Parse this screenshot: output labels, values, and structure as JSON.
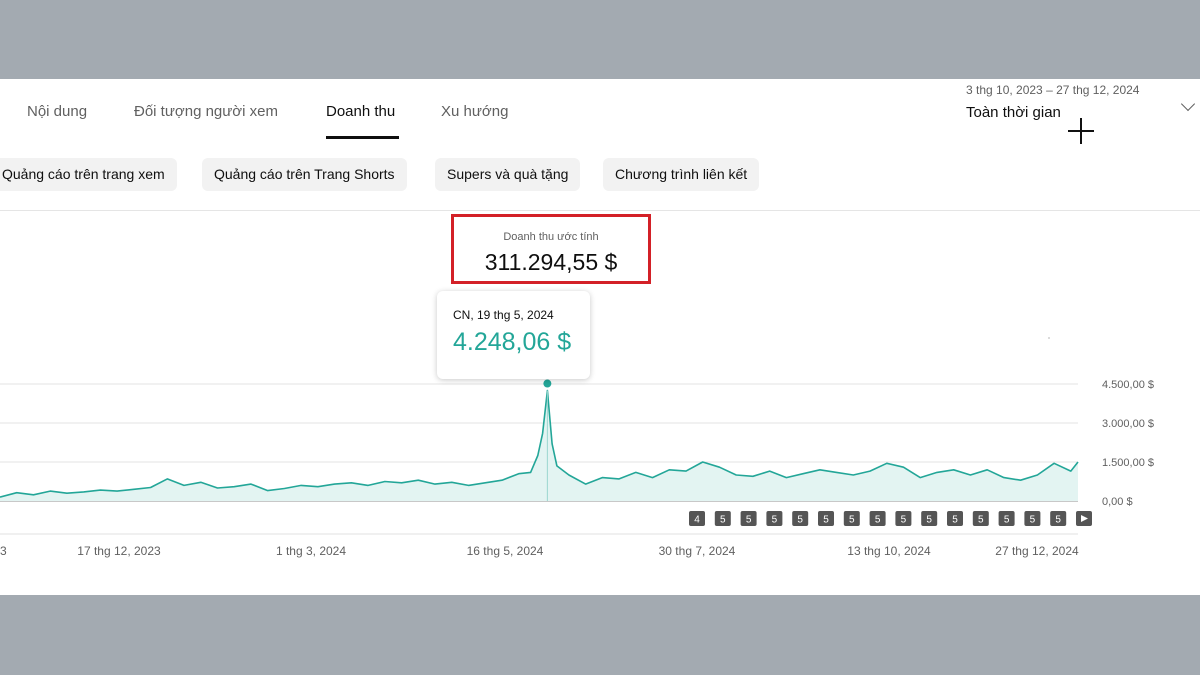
{
  "tabs": [
    {
      "label": "Nội dung"
    },
    {
      "label": "Đối tượng người xem"
    },
    {
      "label": "Doanh thu",
      "active": true
    },
    {
      "label": "Xu hướng"
    }
  ],
  "date_filter": {
    "range": "3 thg 10, 2023 – 27 thg 12, 2024",
    "period": "Toàn thời gian"
  },
  "chips": [
    {
      "label": "Quảng cáo trên trang xem"
    },
    {
      "label": "Quảng cáo trên Trang Shorts"
    },
    {
      "label": "Supers và quà tặng"
    },
    {
      "label": "Chương trình liên kết"
    }
  ],
  "metric": {
    "label": "Doanh thu ước tính",
    "value": "311.294,55 $"
  },
  "tooltip": {
    "date": "CN, 19 thg 5, 2024",
    "value": "4.248,06 $"
  },
  "colors": {
    "line": "#23a698",
    "area": "#e3f4f2",
    "highlight_border": "#d32027"
  },
  "chart_data": {
    "type": "area",
    "title": "",
    "ylabel": "",
    "xlabel": "",
    "x_range": [
      "2023-10-03",
      "2024-12-27"
    ],
    "ylim": [
      0,
      4500
    ],
    "y_ticks": [
      "0,00 $",
      "1.500,00 $",
      "3.000,00 $",
      "4.500,00 $"
    ],
    "x_ticks": [
      "3",
      "17 thg 12, 2023",
      "1 thg 3, 2024",
      "16 thg 5, 2024",
      "30 thg 7, 2024",
      "13 thg 10, 2024",
      "27 thg 12, 2024"
    ],
    "grid": true,
    "series": [
      {
        "x": [
          "2023-10-03",
          "2023-10-10",
          "2023-10-17",
          "2023-10-24",
          "2023-10-31",
          "2023-11-07",
          "2023-11-14",
          "2023-11-21",
          "2023-11-28",
          "2023-12-05",
          "2023-12-12",
          "2023-12-19",
          "2023-12-26",
          "2024-01-02",
          "2024-01-09",
          "2024-01-16",
          "2024-01-23",
          "2024-01-30",
          "2024-02-06",
          "2024-02-13",
          "2024-02-20",
          "2024-02-27",
          "2024-03-05",
          "2024-03-12",
          "2024-03-19",
          "2024-03-26",
          "2024-04-02",
          "2024-04-09",
          "2024-04-16",
          "2024-04-23",
          "2024-04-30",
          "2024-05-07",
          "2024-05-12",
          "2024-05-15",
          "2024-05-17",
          "2024-05-19",
          "2024-05-21",
          "2024-05-23",
          "2024-05-28",
          "2024-06-04",
          "2024-06-11",
          "2024-06-18",
          "2024-06-25",
          "2024-07-02",
          "2024-07-09",
          "2024-07-16",
          "2024-07-23",
          "2024-07-30",
          "2024-08-06",
          "2024-08-13",
          "2024-08-20",
          "2024-08-27",
          "2024-09-03",
          "2024-09-10",
          "2024-09-17",
          "2024-09-24",
          "2024-10-01",
          "2024-10-08",
          "2024-10-15",
          "2024-10-22",
          "2024-10-29",
          "2024-11-05",
          "2024-11-12",
          "2024-11-19",
          "2024-11-26",
          "2024-12-03",
          "2024-12-10",
          "2024-12-17",
          "2024-12-24",
          "2024-12-27"
        ],
        "values": [
          150,
          320,
          240,
          380,
          300,
          350,
          420,
          380,
          450,
          520,
          850,
          600,
          720,
          500,
          550,
          650,
          400,
          480,
          600,
          550,
          650,
          700,
          600,
          750,
          700,
          800,
          650,
          720,
          600,
          700,
          800,
          1050,
          1100,
          1750,
          2600,
          4248,
          2200,
          1350,
          1000,
          650,
          900,
          850,
          1100,
          900,
          1200,
          1150,
          1500,
          1300,
          1000,
          950,
          1150,
          900,
          1050,
          1200,
          1100,
          1000,
          1150,
          1450,
          1300,
          900,
          1100,
          1200,
          1000,
          1200,
          900,
          800,
          1000,
          1450,
          1150,
          1500
        ]
      }
    ]
  },
  "pagination": {
    "items": [
      "4",
      "5",
      "5",
      "5",
      "5",
      "5",
      "5",
      "5",
      "5",
      "5",
      "5",
      "5",
      "5",
      "5",
      "5"
    ],
    "next_icon": "play-icon"
  }
}
